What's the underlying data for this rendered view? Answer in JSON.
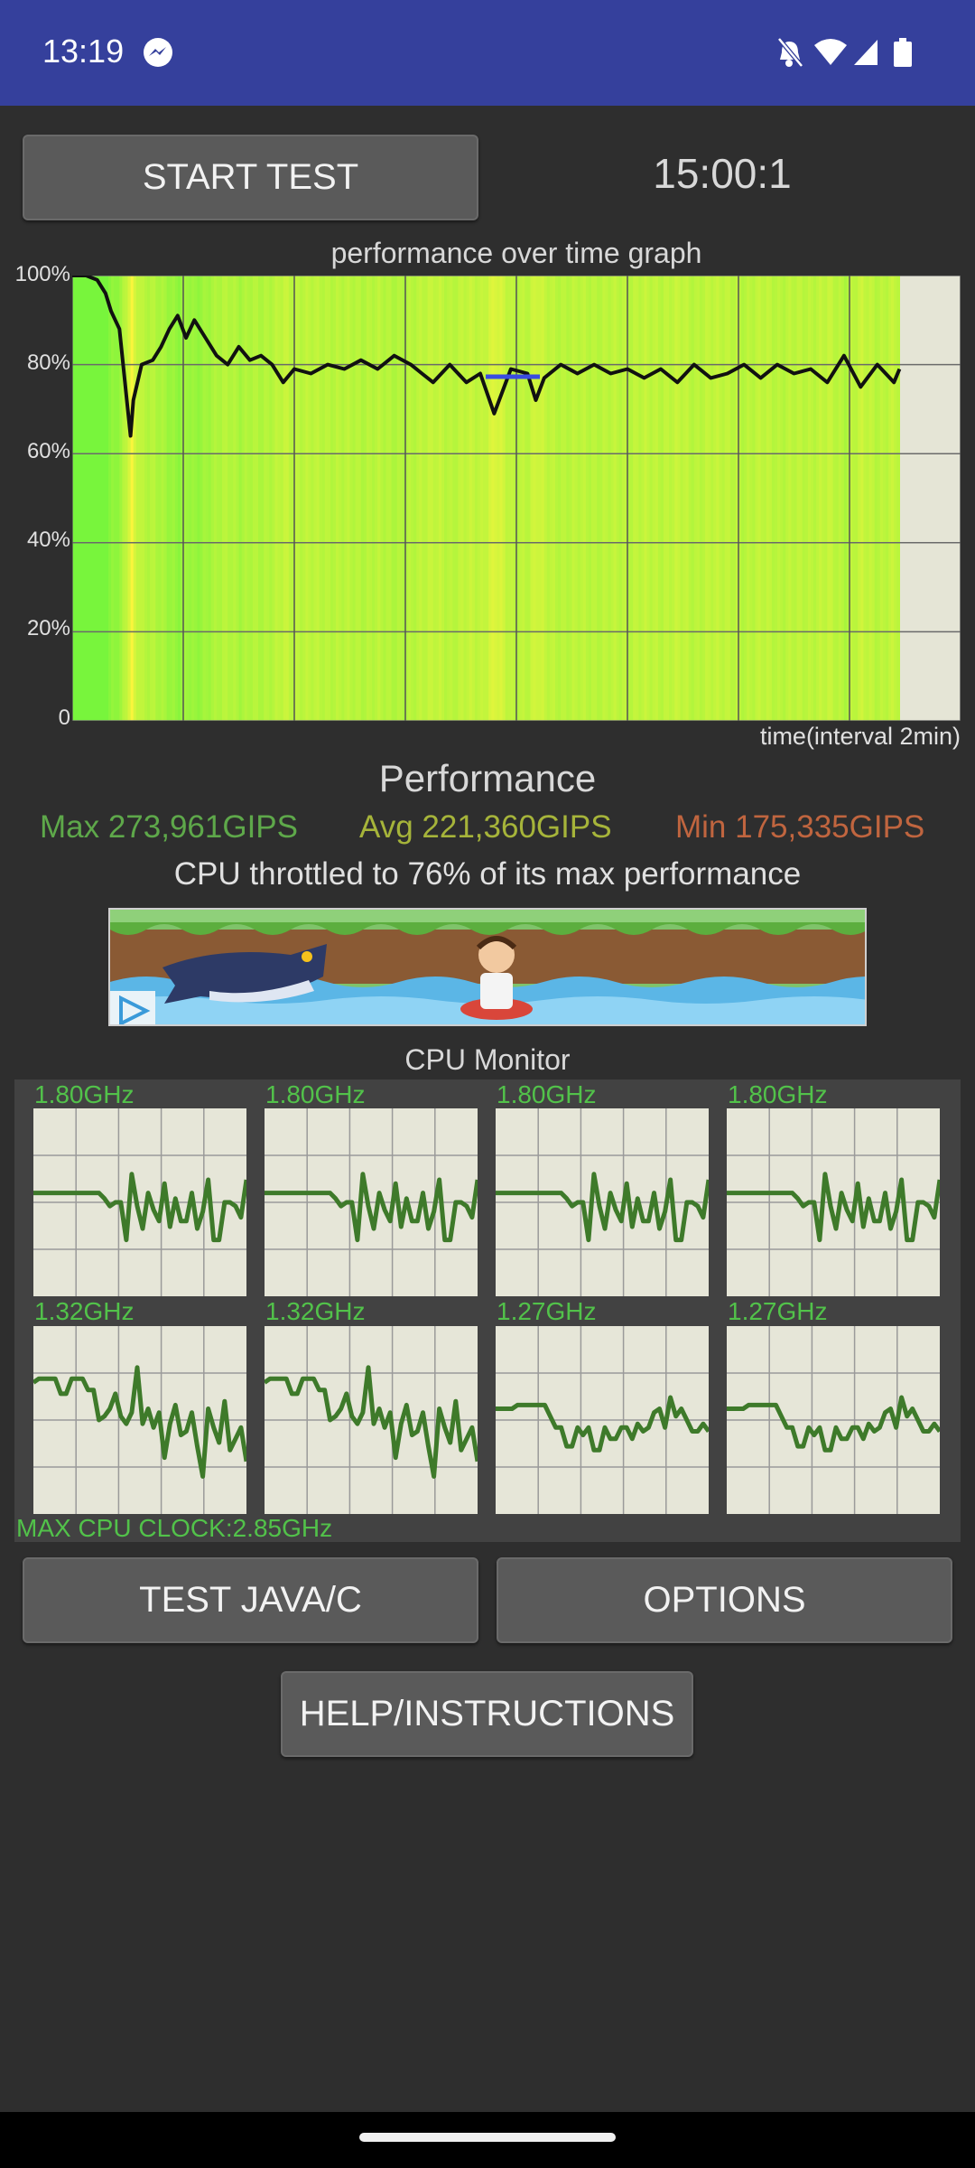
{
  "status_bar": {
    "time": "13:19",
    "icons": [
      "messenger-icon",
      "dnd-off-icon",
      "wifi-icon",
      "signal-icon",
      "battery-icon"
    ]
  },
  "controls": {
    "start_label": "START TEST",
    "timer": "15:00:1"
  },
  "graph": {
    "title": "performance over time graph",
    "y_ticks": [
      "100%",
      "80%",
      "60%",
      "40%",
      "20%",
      "0"
    ],
    "x_label": "time(interval 2min)"
  },
  "chart_data": {
    "type": "line",
    "title": "performance over time graph",
    "xlabel": "time(interval 2min)",
    "ylabel": "",
    "ylim": [
      0,
      100
    ],
    "x_range": [
      0,
      16
    ],
    "grid": true,
    "series": [
      {
        "x": [
          0,
          0.25,
          0.45,
          0.6,
          0.7,
          0.85,
          1.0,
          1.05,
          1.1,
          1.25,
          1.45,
          1.6,
          1.75,
          1.9,
          2.05,
          2.2,
          2.4,
          2.6,
          2.8,
          3.0,
          3.2,
          3.4,
          3.6,
          3.8,
          4.0,
          4.3,
          4.6,
          4.9,
          5.2,
          5.5,
          5.8,
          6.1,
          6.3,
          6.5,
          6.8,
          7.1,
          7.35,
          7.6,
          7.9,
          8.2,
          8.35,
          8.5,
          8.8,
          9.1,
          9.4,
          9.7,
          10.0,
          10.3,
          10.6,
          10.9,
          11.2,
          11.5,
          11.8,
          12.1,
          12.4,
          12.7,
          13.0,
          13.3,
          13.6,
          13.9,
          14.2,
          14.5,
          14.8,
          14.9
        ],
        "y": [
          100,
          100,
          99,
          96,
          92,
          88,
          70,
          64,
          72,
          80,
          81,
          84,
          88,
          91,
          86,
          90,
          86,
          82,
          80,
          84,
          81,
          82,
          80,
          76,
          79,
          78,
          80,
          79,
          81,
          79,
          82,
          80,
          78,
          76,
          80,
          76,
          78,
          69,
          79,
          78,
          72,
          77,
          80,
          78,
          80,
          78,
          79,
          77,
          79,
          76,
          80,
          77,
          78,
          80,
          77,
          80,
          78,
          79,
          76,
          82,
          75,
          80,
          76,
          79
        ]
      }
    ]
  },
  "performance": {
    "title": "Performance",
    "max": "Max 273,961GIPS",
    "avg": "Avg 221,360GIPS",
    "min": "Min 175,335GIPS",
    "throttle": "CPU throttled to 76% of its max performance",
    "colors": {
      "max": "#5ea84a",
      "avg": "#a6b43a",
      "min": "#c0653f"
    }
  },
  "cpu_monitor": {
    "title": "CPU Monitor",
    "cores": [
      {
        "freq": "1.80GHz",
        "values": [
          0.55,
          0.55,
          0.55,
          0.55,
          0.55,
          0.55,
          0.55,
          0.55,
          0.55,
          0.55,
          0.55,
          0.55,
          0.55,
          0.52,
          0.48,
          0.5,
          0.5,
          0.3,
          0.65,
          0.48,
          0.36,
          0.55,
          0.46,
          0.4,
          0.6,
          0.37,
          0.52,
          0.4,
          0.4,
          0.55,
          0.36,
          0.45,
          0.62,
          0.3,
          0.3,
          0.5,
          0.5,
          0.48,
          0.42,
          0.62
        ]
      },
      {
        "freq": "1.80GHz",
        "values": [
          0.55,
          0.55,
          0.55,
          0.55,
          0.55,
          0.55,
          0.55,
          0.55,
          0.55,
          0.55,
          0.55,
          0.55,
          0.55,
          0.52,
          0.48,
          0.5,
          0.5,
          0.3,
          0.65,
          0.48,
          0.36,
          0.55,
          0.46,
          0.4,
          0.6,
          0.37,
          0.52,
          0.4,
          0.4,
          0.55,
          0.36,
          0.45,
          0.62,
          0.3,
          0.3,
          0.5,
          0.5,
          0.48,
          0.42,
          0.62
        ]
      },
      {
        "freq": "1.80GHz",
        "values": [
          0.55,
          0.55,
          0.55,
          0.55,
          0.55,
          0.55,
          0.55,
          0.55,
          0.55,
          0.55,
          0.55,
          0.55,
          0.55,
          0.52,
          0.48,
          0.5,
          0.5,
          0.3,
          0.65,
          0.48,
          0.36,
          0.55,
          0.46,
          0.4,
          0.6,
          0.37,
          0.52,
          0.4,
          0.4,
          0.55,
          0.36,
          0.45,
          0.62,
          0.3,
          0.3,
          0.5,
          0.5,
          0.48,
          0.42,
          0.62
        ]
      },
      {
        "freq": "1.80GHz",
        "values": [
          0.55,
          0.55,
          0.55,
          0.55,
          0.55,
          0.55,
          0.55,
          0.55,
          0.55,
          0.55,
          0.55,
          0.55,
          0.55,
          0.52,
          0.48,
          0.5,
          0.5,
          0.3,
          0.65,
          0.48,
          0.36,
          0.55,
          0.46,
          0.4,
          0.6,
          0.37,
          0.52,
          0.4,
          0.4,
          0.55,
          0.36,
          0.45,
          0.62,
          0.3,
          0.3,
          0.5,
          0.5,
          0.48,
          0.42,
          0.62
        ]
      },
      {
        "freq": "1.32GHz",
        "values": [
          0.7,
          0.72,
          0.72,
          0.72,
          0.72,
          0.64,
          0.64,
          0.72,
          0.72,
          0.72,
          0.66,
          0.66,
          0.5,
          0.52,
          0.56,
          0.64,
          0.52,
          0.48,
          0.54,
          0.78,
          0.48,
          0.56,
          0.46,
          0.54,
          0.3,
          0.48,
          0.58,
          0.42,
          0.44,
          0.54,
          0.36,
          0.2,
          0.56,
          0.46,
          0.38,
          0.6,
          0.34,
          0.4,
          0.46,
          0.28
        ]
      },
      {
        "freq": "1.32GHz",
        "values": [
          0.7,
          0.72,
          0.72,
          0.72,
          0.72,
          0.64,
          0.64,
          0.72,
          0.72,
          0.72,
          0.66,
          0.66,
          0.5,
          0.52,
          0.56,
          0.64,
          0.52,
          0.48,
          0.54,
          0.78,
          0.48,
          0.56,
          0.46,
          0.54,
          0.3,
          0.48,
          0.58,
          0.42,
          0.44,
          0.54,
          0.36,
          0.2,
          0.56,
          0.46,
          0.38,
          0.6,
          0.34,
          0.4,
          0.46,
          0.28
        ]
      },
      {
        "freq": "1.27GHz",
        "values": [
          0.56,
          0.56,
          0.56,
          0.56,
          0.58,
          0.58,
          0.58,
          0.58,
          0.58,
          0.58,
          0.52,
          0.46,
          0.46,
          0.36,
          0.36,
          0.46,
          0.42,
          0.46,
          0.34,
          0.34,
          0.46,
          0.4,
          0.4,
          0.46,
          0.46,
          0.4,
          0.48,
          0.44,
          0.46,
          0.54,
          0.56,
          0.46,
          0.62,
          0.52,
          0.56,
          0.5,
          0.44,
          0.44,
          0.48,
          0.44
        ]
      },
      {
        "freq": "1.27GHz",
        "values": [
          0.56,
          0.56,
          0.56,
          0.56,
          0.58,
          0.58,
          0.58,
          0.58,
          0.58,
          0.58,
          0.52,
          0.46,
          0.46,
          0.36,
          0.36,
          0.46,
          0.42,
          0.46,
          0.34,
          0.34,
          0.46,
          0.4,
          0.4,
          0.46,
          0.46,
          0.4,
          0.48,
          0.44,
          0.46,
          0.54,
          0.56,
          0.46,
          0.62,
          0.52,
          0.56,
          0.5,
          0.44,
          0.44,
          0.48,
          0.44
        ]
      }
    ],
    "max_clock": "MAX CPU CLOCK:2.85GHz"
  },
  "buttons": {
    "test_java": "TEST JAVA/C",
    "options": "OPTIONS",
    "help": "HELP/INSTRUCTIONS"
  }
}
